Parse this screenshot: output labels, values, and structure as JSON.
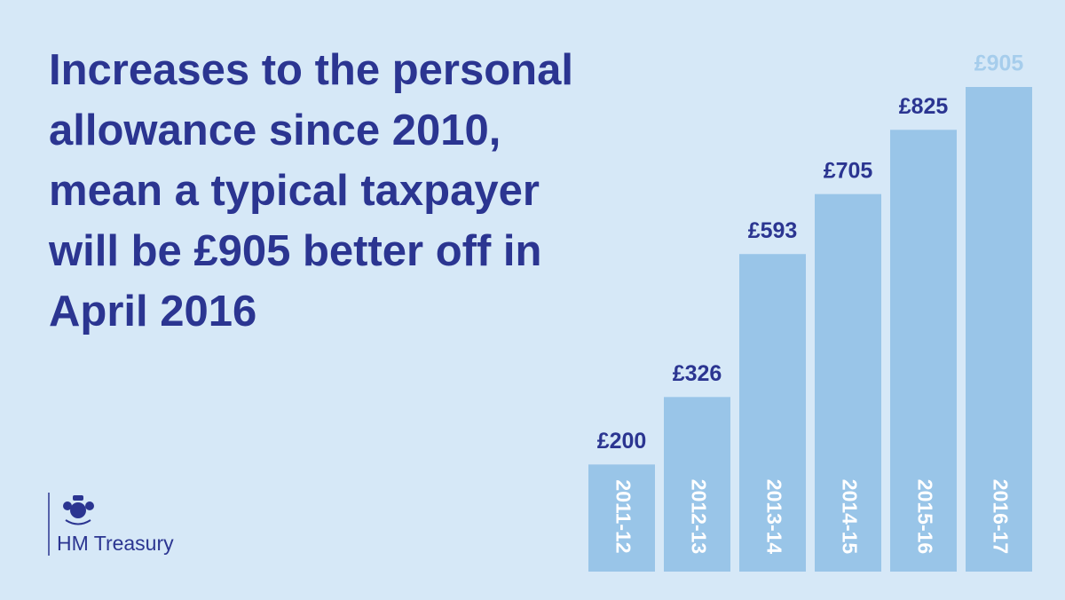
{
  "chart_data": {
    "type": "bar",
    "title": [
      "Increases to the personal",
      "allowance since 2010,",
      "mean a typical taxpayer",
      "will be £905 better off in",
      "April 2016"
    ],
    "categories": [
      "2011-12",
      "2012-13",
      "2013-14",
      "2014-15",
      "2015-16",
      "2016-17"
    ],
    "values": [
      200,
      326,
      593,
      705,
      825,
      905
    ],
    "value_labels": [
      "£200",
      "£326",
      "£593",
      "£705",
      "£825",
      "£905"
    ],
    "value_label_colors": [
      "#2b3591",
      "#2b3591",
      "#2b3591",
      "#2b3591",
      "#2b3591",
      "#a6cdec"
    ],
    "color": "#99c5e8"
  },
  "logo": {
    "text": "HM Treasury"
  }
}
